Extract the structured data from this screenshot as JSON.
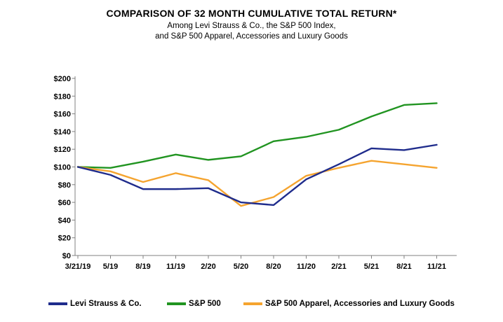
{
  "header": {
    "title": "COMPARISON OF 32 MONTH CUMULATIVE TOTAL RETURN*",
    "subtitle_line1": "Among Levi Strauss & Co., the S&P 500 Index,",
    "subtitle_line2": "and S&P 500 Apparel, Accessories and Luxury Goods"
  },
  "chart_data": {
    "type": "line",
    "title": "COMPARISON OF 32 MONTH CUMULATIVE TOTAL RETURN*",
    "categories": [
      "3/21/19",
      "5/19",
      "8/19",
      "11/19",
      "2/20",
      "5/20",
      "8/20",
      "11/20",
      "2/21",
      "5/21",
      "8/21",
      "11/21"
    ],
    "series": [
      {
        "name": "Levi Strauss & Co.",
        "color": "#1F2C8C",
        "values": [
          100,
          91,
          75,
          75,
          76,
          60,
          57,
          86,
          103,
          121,
          119,
          125
        ]
      },
      {
        "name": "S&P 500",
        "color": "#219421",
        "values": [
          100,
          99,
          106,
          114,
          108,
          112,
          129,
          134,
          142,
          157,
          170,
          172
        ]
      },
      {
        "name": "S&P 500 Apparel, Accessories and Luxury Goods",
        "color": "#F5A42F",
        "values": [
          100,
          95,
          83,
          93,
          85,
          56,
          66,
          90,
          99,
          107,
          103,
          99
        ]
      }
    ],
    "xlabel": "",
    "ylabel": "",
    "ylim": [
      0,
      200
    ],
    "y_tick_step": 20,
    "y_tick_prefix": "$",
    "y_ticks": [
      "$0",
      "$20",
      "$40",
      "$60",
      "$80",
      "$100",
      "$120",
      "$140",
      "$160",
      "$180",
      "$200"
    ],
    "grid": false,
    "legend_position": "bottom",
    "axis_color": "#808080",
    "text_color": "#000000",
    "draw_order": [
      1,
      2,
      0
    ]
  },
  "legend": {
    "items": [
      {
        "label": "Levi Strauss & Co."
      },
      {
        "label": "S&P 500"
      },
      {
        "label": "S&P 500 Apparel, Accessories and Luxury Goods"
      }
    ]
  }
}
